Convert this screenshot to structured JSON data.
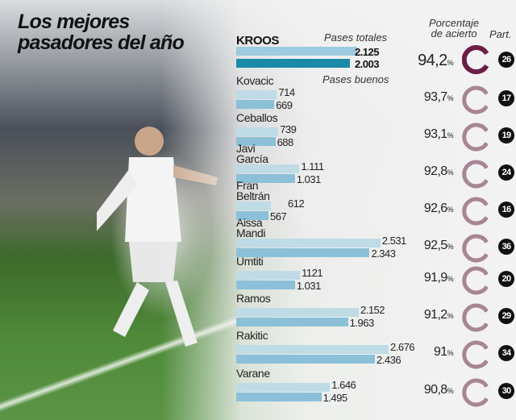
{
  "title_line1": "Los mejores",
  "title_line2": "pasadores del año",
  "headers": {
    "percentage_line1": "Porcentaje",
    "percentage_line2": "de acierto",
    "matches": "Part.",
    "total_passes": "Pases totales",
    "good_passes": "Pases buenos"
  },
  "colors": {
    "highlight_bar_total": "#9ecbdf",
    "highlight_bar_good": "#1b8aa6",
    "bar_total": "#bfdbe6",
    "bar_good": "#8cc0d8",
    "ring_highlight": "#6b1d45",
    "ring": "#a88595"
  },
  "chart_data": {
    "type": "bar",
    "orientation": "horizontal",
    "categories": [
      "KROOS",
      "Kovacic",
      "Ceballos",
      "Javi García",
      "Fran Beltrán",
      "Aissa Mandi",
      "Umtiti",
      "Ramos",
      "Rakitic",
      "Varane"
    ],
    "series": [
      {
        "name": "Pases totales",
        "values": [
          2125,
          714,
          739,
          1111,
          612,
          2531,
          1121,
          2152,
          2676,
          1646
        ],
        "labels": [
          "2.125",
          "714",
          "739",
          "1.111",
          "612",
          "2.531",
          "1121",
          "2.152",
          "2.676",
          "1.646"
        ]
      },
      {
        "name": "Pases buenos",
        "values": [
          2003,
          669,
          688,
          1031,
          567,
          2343,
          1031,
          1963,
          2436,
          1495
        ],
        "labels": [
          "2.003",
          "669",
          "688",
          "1.031",
          "567",
          "2.343",
          "1.031",
          "1.963",
          "2.436",
          "1.495"
        ]
      }
    ],
    "accuracy": [
      "94,2",
      "93,7",
      "93,1",
      "92,8",
      "92,6",
      "92,5",
      "91,9",
      "91,2",
      "91",
      "90,8"
    ],
    "accuracy_unit": "%",
    "matches": [
      "26",
      "17",
      "19",
      "24",
      "16",
      "36",
      "20",
      "29",
      "34",
      "30"
    ]
  }
}
